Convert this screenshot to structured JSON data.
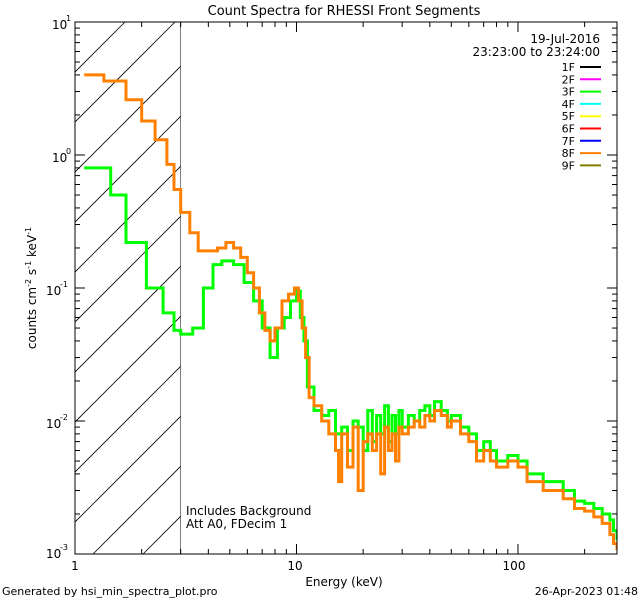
{
  "chart_data": {
    "type": "line",
    "title": "Count Spectra for RHESSI Front Segments",
    "xlabel": "Energy (keV)",
    "ylabel_parts": [
      "counts cm",
      "-2",
      " s",
      "-1",
      " keV",
      "-1"
    ],
    "xscale": "log",
    "yscale": "log",
    "xlim": [
      1,
      280
    ],
    "ylim": [
      0.001,
      10
    ],
    "x_ticks": [
      "1",
      "10",
      "100"
    ],
    "y_tick_bases": [
      "10",
      "10",
      "10",
      "10",
      "10"
    ],
    "y_tick_exps": [
      "-3",
      "-2",
      "-1",
      "0",
      "1"
    ],
    "y_tick_values": [
      0.001,
      0.01,
      0.1,
      1,
      10
    ],
    "x_tick_values": [
      1,
      10,
      100
    ],
    "date": "19-Jul-2016",
    "time_range": "23:23:00 to 23:24:00",
    "legend_position": "top-right",
    "legend": [
      {
        "name": "1F",
        "color": "#000000"
      },
      {
        "name": "2F",
        "color": "#ff00ff"
      },
      {
        "name": "3F",
        "color": "#00ff00"
      },
      {
        "name": "4F",
        "color": "#00ffff"
      },
      {
        "name": "5F",
        "color": "#ffff00"
      },
      {
        "name": "6F",
        "color": "#ff0000"
      },
      {
        "name": "7F",
        "color": "#0000ff"
      },
      {
        "name": "8F",
        "color": "#ff8000"
      },
      {
        "name": "9F",
        "color": "#808000"
      }
    ],
    "annotations": [
      "Includes Background",
      "Att A0, FDecim 1"
    ],
    "hatched_region_xmax": 3,
    "series": [
      {
        "name": "3F",
        "color": "#00ff00",
        "points": [
          [
            1.1,
            0.8
          ],
          [
            1.25,
            0.8
          ],
          [
            1.45,
            0.5
          ],
          [
            1.7,
            0.22
          ],
          [
            2.1,
            0.1
          ],
          [
            2.5,
            0.065
          ],
          [
            2.8,
            0.048
          ],
          [
            3.0,
            0.045
          ],
          [
            3.4,
            0.05
          ],
          [
            3.8,
            0.1
          ],
          [
            4.2,
            0.15
          ],
          [
            4.6,
            0.16
          ],
          [
            5.2,
            0.15
          ],
          [
            5.8,
            0.11
          ],
          [
            6.4,
            0.08
          ],
          [
            7.0,
            0.05
          ],
          [
            7.6,
            0.03
          ],
          [
            8.2,
            0.05
          ],
          [
            8.8,
            0.06
          ],
          [
            9.4,
            0.08
          ],
          [
            10.0,
            0.095
          ],
          [
            10.4,
            0.06
          ],
          [
            10.8,
            0.04
          ],
          [
            11.2,
            0.018
          ],
          [
            12,
            0.012
          ],
          [
            13,
            0.011
          ],
          [
            14,
            0.012
          ],
          [
            15,
            0.008
          ],
          [
            16,
            0.009
          ],
          [
            17,
            0.006
          ],
          [
            18,
            0.01
          ],
          [
            19,
            0.009
          ],
          [
            20,
            0.006
          ],
          [
            21,
            0.012
          ],
          [
            22,
            0.007
          ],
          [
            23,
            0.011
          ],
          [
            24,
            0.008
          ],
          [
            25,
            0.013
          ],
          [
            26,
            0.007
          ],
          [
            27,
            0.011
          ],
          [
            28,
            0.008
          ],
          [
            29,
            0.012
          ],
          [
            30,
            0.009
          ],
          [
            32,
            0.011
          ],
          [
            34,
            0.01
          ],
          [
            36,
            0.012
          ],
          [
            38,
            0.013
          ],
          [
            40,
            0.011
          ],
          [
            42,
            0.014
          ],
          [
            45,
            0.012
          ],
          [
            48,
            0.01
          ],
          [
            50,
            0.011
          ],
          [
            55,
            0.009
          ],
          [
            60,
            0.008
          ],
          [
            65,
            0.006
          ],
          [
            70,
            0.007
          ],
          [
            75,
            0.006
          ],
          [
            80,
            0.005
          ],
          [
            90,
            0.0055
          ],
          [
            100,
            0.005
          ],
          [
            110,
            0.004
          ],
          [
            120,
            0.004
          ],
          [
            130,
            0.0035
          ],
          [
            140,
            0.0035
          ],
          [
            160,
            0.003
          ],
          [
            180,
            0.0025
          ],
          [
            200,
            0.0024
          ],
          [
            220,
            0.0022
          ],
          [
            240,
            0.002
          ],
          [
            260,
            0.0018
          ],
          [
            270,
            0.0015
          ],
          [
            280,
            0.0013
          ]
        ]
      },
      {
        "name": "8F",
        "color": "#ff8000",
        "points": [
          [
            1.1,
            4.0
          ],
          [
            1.35,
            3.6
          ],
          [
            1.7,
            2.6
          ],
          [
            2.0,
            1.8
          ],
          [
            2.3,
            1.3
          ],
          [
            2.6,
            0.85
          ],
          [
            2.8,
            0.55
          ],
          [
            3.0,
            0.37
          ],
          [
            3.3,
            0.26
          ],
          [
            3.6,
            0.19
          ],
          [
            4.0,
            0.19
          ],
          [
            4.4,
            0.2
          ],
          [
            4.8,
            0.22
          ],
          [
            5.2,
            0.2
          ],
          [
            5.6,
            0.17
          ],
          [
            6.0,
            0.13
          ],
          [
            6.4,
            0.1
          ],
          [
            6.8,
            0.065
          ],
          [
            7.2,
            0.048
          ],
          [
            7.6,
            0.04
          ],
          [
            8.0,
            0.05
          ],
          [
            8.6,
            0.08
          ],
          [
            9.2,
            0.09
          ],
          [
            9.8,
            0.1
          ],
          [
            10.2,
            0.08
          ],
          [
            10.6,
            0.05
          ],
          [
            11.0,
            0.03
          ],
          [
            11.4,
            0.015
          ],
          [
            12,
            0.013
          ],
          [
            13,
            0.01
          ],
          [
            14,
            0.008
          ],
          [
            15,
            0.006
          ],
          [
            15.5,
            0.0035
          ],
          [
            16,
            0.008
          ],
          [
            17,
            0.0045
          ],
          [
            18,
            0.009
          ],
          [
            19,
            0.003
          ],
          [
            20,
            0.007
          ],
          [
            21,
            0.008
          ],
          [
            22,
            0.006
          ],
          [
            23,
            0.008
          ],
          [
            24,
            0.004
          ],
          [
            25,
            0.009
          ],
          [
            26,
            0.006
          ],
          [
            27,
            0.008
          ],
          [
            28,
            0.005
          ],
          [
            29,
            0.009
          ],
          [
            30,
            0.008
          ],
          [
            32,
            0.009
          ],
          [
            34,
            0.01
          ],
          [
            36,
            0.009
          ],
          [
            38,
            0.011
          ],
          [
            40,
            0.01
          ],
          [
            42,
            0.012
          ],
          [
            45,
            0.011
          ],
          [
            48,
            0.009
          ],
          [
            50,
            0.01
          ],
          [
            55,
            0.008
          ],
          [
            60,
            0.007
          ],
          [
            65,
            0.005
          ],
          [
            70,
            0.006
          ],
          [
            75,
            0.005
          ],
          [
            80,
            0.0045
          ],
          [
            90,
            0.005
          ],
          [
            100,
            0.0045
          ],
          [
            110,
            0.0035
          ],
          [
            120,
            0.0035
          ],
          [
            130,
            0.003
          ],
          [
            140,
            0.003
          ],
          [
            160,
            0.0026
          ],
          [
            180,
            0.0022
          ],
          [
            200,
            0.0021
          ],
          [
            220,
            0.0019
          ],
          [
            240,
            0.0017
          ],
          [
            260,
            0.0014
          ],
          [
            270,
            0.0012
          ],
          [
            280,
            0.0011
          ]
        ]
      }
    ]
  },
  "footer": {
    "generated_by": "Generated by hsi_min_spectra_plot.pro",
    "timestamp": "26-Apr-2023 01:48"
  }
}
